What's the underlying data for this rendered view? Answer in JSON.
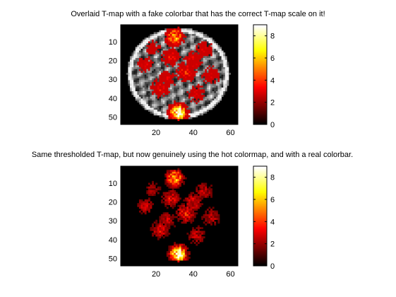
{
  "chart_data": [
    {
      "type": "heatmap",
      "title": "Overlaid T-map with a fake colorbar that has the correct T-map scale on it!",
      "background": "grayscale anatomical MRI slice (axial)",
      "overlay_colormap": "hot",
      "xlim": [
        1,
        64
      ],
      "ylim": [
        1,
        54
      ],
      "y_reversed": true,
      "x_ticks": [
        20,
        40,
        60
      ],
      "y_ticks": [
        10,
        20,
        30,
        40,
        50
      ],
      "colorbar": {
        "ticks": [
          0,
          2,
          4,
          6,
          8
        ],
        "range": [
          0,
          9
        ],
        "colormap": "hot",
        "location": "right"
      },
      "blobs": [
        {
          "x": 32,
          "y": 48,
          "value": 8.5
        },
        {
          "x": 30,
          "y": 7,
          "value": 6.0
        },
        {
          "x": 28,
          "y": 18,
          "value": 3.0
        },
        {
          "x": 36,
          "y": 26,
          "value": 3.5
        },
        {
          "x": 22,
          "y": 35,
          "value": 3.0
        },
        {
          "x": 14,
          "y": 22,
          "value": 2.5
        },
        {
          "x": 46,
          "y": 14,
          "value": 2.5
        },
        {
          "x": 50,
          "y": 28,
          "value": 2.5
        },
        {
          "x": 42,
          "y": 38,
          "value": 2.5
        },
        {
          "x": 18,
          "y": 13,
          "value": 2.0
        },
        {
          "x": 40,
          "y": 20,
          "value": 3.0
        },
        {
          "x": 26,
          "y": 30,
          "value": 2.5
        }
      ]
    },
    {
      "type": "heatmap",
      "title": "Same thresholded T-map, but now genuinely using the hot colormap, and with a real colorbar.",
      "background": "black",
      "overlay_colormap": "hot",
      "xlim": [
        1,
        64
      ],
      "ylim": [
        1,
        54
      ],
      "y_reversed": true,
      "x_ticks": [
        20,
        40,
        60
      ],
      "y_ticks": [
        10,
        20,
        30,
        40,
        50
      ],
      "colorbar": {
        "ticks": [
          0,
          2,
          4,
          6,
          8
        ],
        "range": [
          0,
          9
        ],
        "colormap": "hot",
        "location": "right"
      },
      "blobs": [
        {
          "x": 32,
          "y": 48,
          "value": 8.5
        },
        {
          "x": 30,
          "y": 7,
          "value": 6.0
        },
        {
          "x": 28,
          "y": 18,
          "value": 3.0
        },
        {
          "x": 36,
          "y": 26,
          "value": 3.5
        },
        {
          "x": 22,
          "y": 35,
          "value": 3.0
        },
        {
          "x": 14,
          "y": 22,
          "value": 2.5
        },
        {
          "x": 46,
          "y": 14,
          "value": 2.5
        },
        {
          "x": 50,
          "y": 28,
          "value": 2.5
        },
        {
          "x": 42,
          "y": 38,
          "value": 2.5
        },
        {
          "x": 18,
          "y": 13,
          "value": 2.0
        },
        {
          "x": 40,
          "y": 20,
          "value": 3.0
        },
        {
          "x": 26,
          "y": 30,
          "value": 2.5
        }
      ]
    }
  ]
}
